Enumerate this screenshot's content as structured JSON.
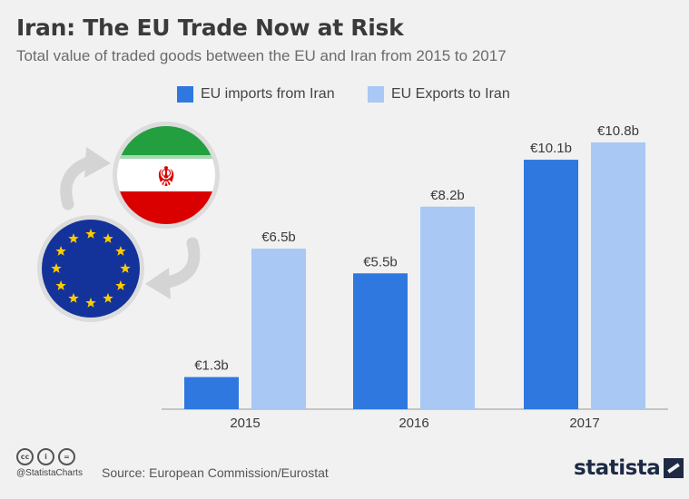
{
  "title": "Iran: The EU Trade Now at Risk",
  "subtitle": "Total value of traded goods between the EU and Iran from 2015 to 2017",
  "legend": [
    {
      "label": "EU imports from Iran",
      "color": "#2f78e0"
    },
    {
      "label": "EU Exports to Iran",
      "color": "#a9c8f3"
    }
  ],
  "chart_data": {
    "type": "bar",
    "categories": [
      "2015",
      "2016",
      "2017"
    ],
    "series": [
      {
        "name": "EU imports from Iran",
        "values": [
          1.3,
          5.5,
          10.1
        ],
        "labels": [
          "€1.3b",
          "€5.5b",
          "€10.1b"
        ],
        "color": "#2f78e0"
      },
      {
        "name": "EU Exports to Iran",
        "values": [
          6.5,
          8.2,
          10.8
        ],
        "labels": [
          "€6.5b",
          "€8.2b",
          "€10.8b"
        ],
        "color": "#a9c8f3"
      }
    ],
    "title": "Iran: The EU Trade Now at Risk",
    "xlabel": "",
    "ylabel": "",
    "ylim": [
      0,
      10.8
    ],
    "grid": false,
    "legend_position": "top"
  },
  "footer": {
    "handle": "@StatistaCharts",
    "source": "Source: European Commission/Eurostat",
    "brand": "statista",
    "license_badges": [
      "cc",
      "i",
      "="
    ]
  },
  "icons": [
    "iran-flag-icon",
    "eu-flag-icon",
    "exchange-arrows-icon"
  ]
}
